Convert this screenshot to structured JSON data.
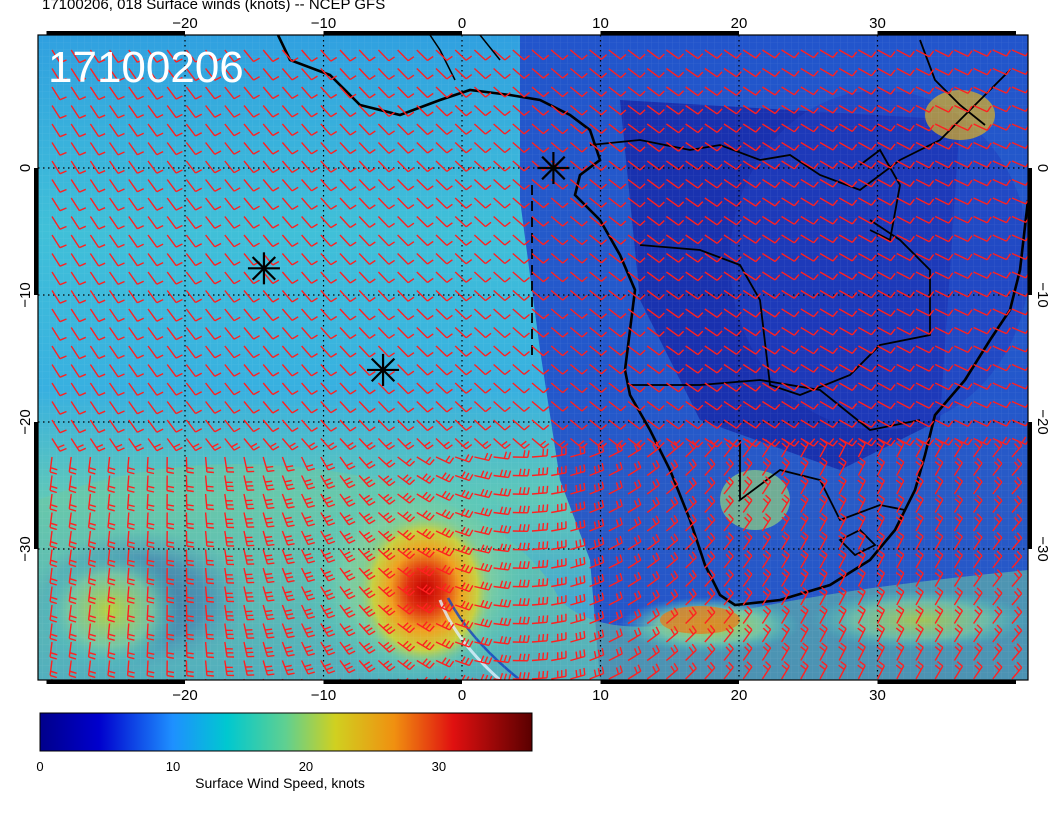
{
  "title": "17100206, 018 Surface winds (knots) -- NCEP GFS",
  "map": {
    "stamp": "17100206",
    "lon_ticks": [
      "−20",
      "−10",
      "0",
      "10",
      "20",
      "30"
    ],
    "lat_ticks": [
      "0",
      "−10",
      "−20",
      "−30"
    ],
    "lon_range": [
      -30,
      41
    ],
    "lat_range": [
      -40,
      10
    ],
    "gridlines": "dotted",
    "barb_color": "#ff2020",
    "coast_color": "#000000"
  },
  "markers": [
    {
      "name": "asterisk-marker-1",
      "lon": 6.6,
      "lat": 0.0
    },
    {
      "name": "asterisk-marker-2",
      "lon": -14.3,
      "lat": -7.9
    },
    {
      "name": "asterisk-marker-3",
      "lon": -5.7,
      "lat": -15.9
    }
  ],
  "colorbar": {
    "label": "Surface Wind Speed, knots",
    "min": 0,
    "max": 37,
    "ticks": [
      "0",
      "10",
      "20",
      "30"
    ],
    "tick_values": [
      0,
      10,
      20,
      30
    ]
  }
}
